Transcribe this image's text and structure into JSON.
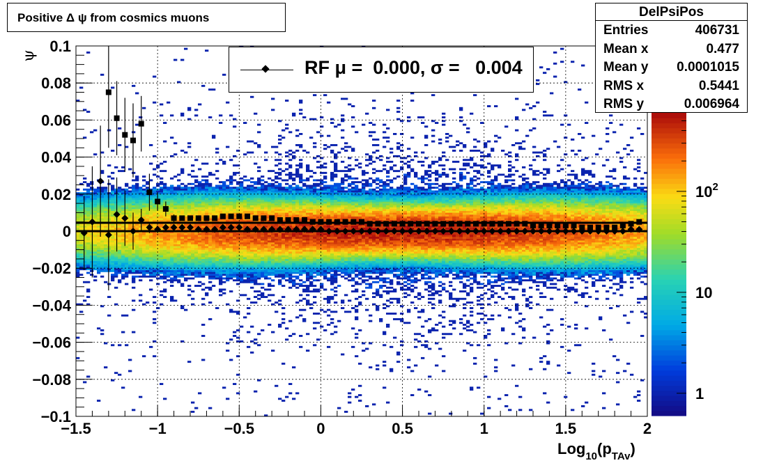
{
  "title": "Positive Δ ψ from cosmics muons",
  "stats": {
    "name": "DelPsiPos",
    "rows": [
      {
        "label": "Entries",
        "value": "406731"
      },
      {
        "label": "Mean x",
        "value": "0.477"
      },
      {
        "label": "Mean y",
        "value": "0.0001015"
      },
      {
        "label": "RMS x",
        "value": "0.5441"
      },
      {
        "label": "RMS y",
        "value": "0.006964"
      }
    ]
  },
  "legend": {
    "text": "RF μ =  0.000, σ =   0.004"
  },
  "colors": {
    "markers": "#000000",
    "palette": "ROOT rainbow (blue-cyan-yellow-red)"
  },
  "chart_data": {
    "type": "heatmap",
    "xlabel": "Log10(pTAv)",
    "ylabel": "ψ",
    "xlim": [
      -1.5,
      2
    ],
    "ylim": [
      -0.1,
      0.1
    ],
    "xticks": [
      "−1.5",
      "−1",
      "−0.5",
      "0",
      "0.5",
      "1",
      "1.5",
      "2"
    ],
    "yticks": [
      "−0.1",
      "−0.08",
      "−0.06",
      "−0.04",
      "−0.02",
      "0",
      "0.02",
      "0.04",
      "0.06",
      "0.08",
      "0.1"
    ],
    "grid": true,
    "zscale": "log",
    "z_ticks": [
      "1",
      "10",
      "10^2"
    ],
    "z_range": [
      0.6,
      600
    ],
    "ridge": {
      "mean_y": 0.0001015,
      "sigma_y": 0.006964,
      "mean_x": 0.477,
      "rms_x": 0.5441
    },
    "series": [
      {
        "marker": "diamond",
        "x": [
          -1.45,
          -1.4,
          -1.35,
          -1.3,
          -1.25,
          -1.2,
          -1.15,
          -1.1,
          -1.05,
          -1.0,
          -0.95,
          -0.9,
          -0.85,
          -0.8,
          -0.75,
          -0.7,
          -0.65,
          -0.6,
          -0.55,
          -0.5,
          -0.45,
          -0.4,
          -0.35,
          -0.3,
          -0.25,
          -0.2,
          -0.15,
          -0.1,
          -0.05,
          0.0,
          0.05,
          0.1,
          0.15,
          0.2,
          0.25,
          0.3,
          0.35,
          0.4,
          0.45,
          0.5,
          0.55,
          0.6,
          0.65,
          0.7,
          0.75,
          0.8,
          0.85,
          0.9,
          0.95,
          1.0,
          1.05,
          1.1,
          1.15,
          1.2,
          1.25,
          1.3,
          1.35,
          1.4,
          1.45,
          1.5,
          1.55,
          1.6,
          1.65,
          1.7,
          1.75,
          1.8,
          1.85,
          1.9,
          1.95
        ],
        "y": [
          -0.001,
          0.005,
          0.027,
          -0.002,
          0.009,
          0.007,
          0.0,
          0.006,
          0.002,
          0.001,
          0.002,
          0.002,
          0.002,
          0.002,
          0.001,
          0.001,
          0.001,
          0.002,
          0.002,
          0.002,
          0.001,
          0.001,
          0.001,
          0.001,
          0.001,
          0.001,
          0.001,
          0.001,
          0.001,
          0.001,
          0.0,
          0.0,
          0.0,
          0.0,
          0.0,
          0.0,
          0.0,
          0.0,
          0.0,
          0.0,
          0.0,
          0.0,
          0.0,
          0.0,
          0.0,
          0.0,
          0.0,
          0.0,
          0.0,
          0.0,
          0.0,
          0.0,
          0.0,
          0.0,
          0.0,
          0.0,
          0.0,
          0.0,
          0.0,
          0.0,
          0.0,
          0.0,
          0.0,
          0.0,
          0.0,
          0.0,
          0.0,
          0.001,
          0.001
        ],
        "err": [
          0.02,
          0.03,
          0.03,
          0.03,
          0.02,
          0.015,
          0.01,
          0.006,
          0.003,
          0.002,
          0.0015,
          0.001,
          0.001,
          0.001,
          0.001,
          0.0008,
          0.0006,
          0.0005,
          0.0004,
          0.0004,
          0.0003,
          0.0003,
          0.0003,
          0.0003,
          0.0002,
          0.0002,
          0.0002,
          0.0002,
          0.0002,
          0.0002,
          0.0002,
          0.0002,
          0.0002,
          0.0002,
          0.0002,
          0.0002,
          0.0002,
          0.0002,
          0.0002,
          0.0002,
          0.0002,
          0.0002,
          0.0002,
          0.0002,
          0.0002,
          0.0002,
          0.0002,
          0.0002,
          0.0002,
          0.0002,
          0.0002,
          0.0002,
          0.0002,
          0.0002,
          0.0002,
          0.0002,
          0.0002,
          0.0002,
          0.0002,
          0.0002,
          0.0002,
          0.0002,
          0.0002,
          0.0002,
          0.0002,
          0.0003,
          0.0003,
          0.0003,
          0.0004
        ]
      },
      {
        "marker": "square",
        "x": [
          -1.3,
          -1.25,
          -1.2,
          -1.15,
          -1.1,
          -1.05,
          -1.0,
          -0.95,
          -0.9,
          -0.85,
          -0.8,
          -0.75,
          -0.7,
          -0.65,
          -0.6,
          -0.55,
          -0.5,
          -0.45,
          -0.4,
          -0.35,
          -0.3,
          -0.25,
          -0.2,
          -0.15,
          -0.1,
          -0.05,
          0.0,
          0.05,
          0.1,
          0.15,
          0.2,
          0.25,
          0.3,
          0.35,
          0.4,
          0.45,
          0.5,
          0.55,
          0.6,
          0.65,
          0.7,
          0.75,
          0.8,
          0.85,
          0.9,
          0.95,
          1.0,
          1.05,
          1.1,
          1.15,
          1.2,
          1.25,
          1.3,
          1.35,
          1.4,
          1.45,
          1.5,
          1.55,
          1.6,
          1.65,
          1.7,
          1.75,
          1.8,
          1.85,
          1.9,
          1.95
        ],
        "y": [
          0.075,
          0.061,
          0.052,
          0.049,
          0.058,
          0.021,
          0.016,
          0.012,
          0.007,
          0.007,
          0.007,
          0.007,
          0.007,
          0.007,
          0.008,
          0.008,
          0.008,
          0.008,
          0.007,
          0.007,
          0.007,
          0.006,
          0.006,
          0.006,
          0.006,
          0.005,
          0.005,
          0.005,
          0.005,
          0.005,
          0.005,
          0.005,
          0.004,
          0.004,
          0.004,
          0.004,
          0.004,
          0.004,
          0.004,
          0.004,
          0.004,
          0.004,
          0.004,
          0.004,
          0.004,
          0.004,
          0.004,
          0.004,
          0.004,
          0.004,
          0.004,
          0.004,
          0.003,
          0.003,
          0.003,
          0.003,
          0.003,
          0.003,
          0.002,
          0.002,
          0.002,
          0.002,
          0.002,
          0.003,
          0.004,
          0.005
        ],
        "err": [
          0.03,
          0.02,
          0.02,
          0.02,
          0.015,
          0.01,
          0.005,
          0.004,
          0.002,
          0.001,
          0.001,
          0.001,
          0.001,
          0.0008,
          0.0006,
          0.0005,
          0.0004,
          0.0004,
          0.0003,
          0.0003,
          0.0003,
          0.0003,
          0.0002,
          0.0002,
          0.0002,
          0.0002,
          0.0002,
          0.0002,
          0.0002,
          0.0002,
          0.0002,
          0.0002,
          0.0002,
          0.0002,
          0.0002,
          0.0002,
          0.0002,
          0.0002,
          0.0002,
          0.0002,
          0.0002,
          0.0002,
          0.0002,
          0.0002,
          0.0002,
          0.0002,
          0.0002,
          0.0002,
          0.0002,
          0.0002,
          0.0002,
          0.0002,
          0.0002,
          0.0002,
          0.0002,
          0.0002,
          0.0002,
          0.0002,
          0.0002,
          0.0002,
          0.0002,
          0.0003,
          0.0003,
          0.0003,
          0.0004,
          0.0004
        ]
      }
    ],
    "reference_lines": [
      {
        "y": 0.0,
        "x_range": [
          -1.5,
          2
        ]
      },
      {
        "y": 0.0045,
        "x_range": [
          -1.5,
          2
        ]
      }
    ]
  }
}
